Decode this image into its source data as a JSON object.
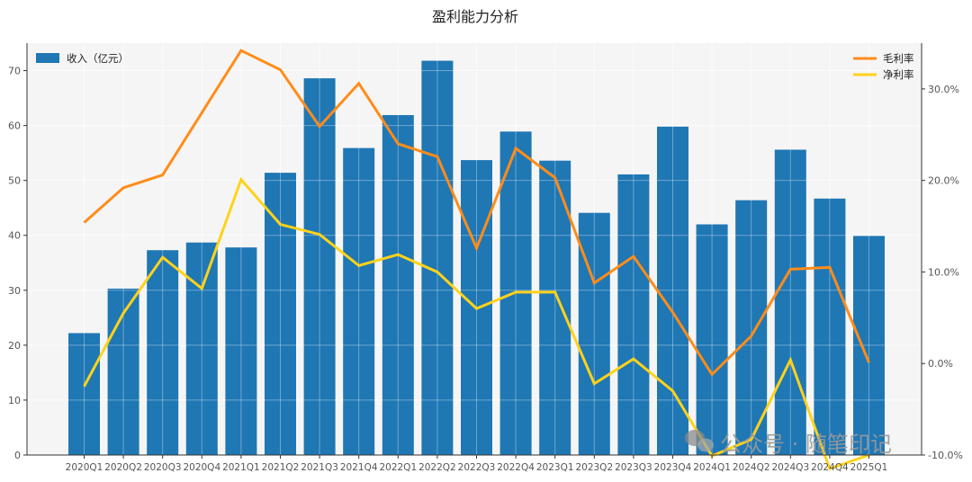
{
  "chart_data": {
    "type": "bar",
    "title": "盈利能力分析",
    "categories": [
      "2020Q1",
      "2020Q2",
      "2020Q3",
      "2020Q4",
      "2021Q1",
      "2021Q2",
      "2021Q3",
      "2021Q4",
      "2022Q1",
      "2022Q2",
      "2022Q3",
      "2022Q4",
      "2023Q1",
      "2023Q2",
      "2023Q3",
      "2023Q4",
      "2024Q1",
      "2024Q2",
      "2024Q3",
      "2024Q4",
      "2025Q1"
    ],
    "xlabel": "",
    "ylabel": "",
    "y_left": {
      "lim": [
        0,
        75
      ],
      "ticks": [
        0,
        10,
        20,
        30,
        40,
        50,
        60,
        70
      ]
    },
    "y_right": {
      "lim": [
        -10.0,
        35.0
      ],
      "ticks": [
        -10.0,
        0.0,
        10.0,
        20.0,
        30.0
      ],
      "tick_labels": [
        "-10.0%",
        "0.0%",
        "10.0%",
        "20.0%",
        "30.0%"
      ]
    },
    "grid": true,
    "series": [
      {
        "name": "收入（亿元）",
        "kind": "bar",
        "axis": "left",
        "color": "#1f77b4",
        "values": [
          22.2,
          30.3,
          37.3,
          38.7,
          37.8,
          51.4,
          68.6,
          55.9,
          61.9,
          71.8,
          53.7,
          58.9,
          53.6,
          44.1,
          51.1,
          59.8,
          42.0,
          46.4,
          55.6,
          46.7,
          39.9
        ]
      },
      {
        "name": "毛利率",
        "kind": "line",
        "axis": "right",
        "color": "#ff8c1a",
        "values": [
          15.4,
          19.2,
          20.6,
          27.4,
          34.2,
          32.1,
          25.9,
          30.6,
          24.0,
          22.6,
          12.6,
          23.5,
          20.3,
          8.8,
          11.7,
          5.6,
          -1.2,
          3.0,
          10.3,
          10.5,
          0.1
        ]
      },
      {
        "name": "净利率",
        "kind": "line",
        "axis": "right",
        "color": "#ffd21a",
        "values": [
          -2.5,
          5.5,
          11.6,
          8.2,
          20.1,
          15.2,
          14.1,
          10.7,
          11.9,
          10.0,
          6.0,
          7.8,
          7.8,
          -2.2,
          0.5,
          -3.0,
          -10.1,
          -8.3,
          0.4,
          -11.5,
          -10.0
        ]
      }
    ],
    "legend_left": {
      "placement": "top-left"
    },
    "legend_right": {
      "placement": "top-right"
    }
  },
  "watermark": {
    "text": "公众号 · 随笔印记"
  },
  "colors": {
    "plot_bg": "#f5f5f5",
    "grid": "#ffffff",
    "axis": "#333333",
    "tick_text": "#555555"
  }
}
